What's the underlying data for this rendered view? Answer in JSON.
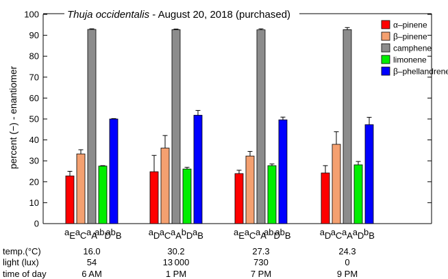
{
  "chart_data": {
    "type": "bar",
    "title_species": "Thuja occidentalis",
    "title_rest": " - August 20, 2018 (purchased)",
    "ylabel": "percent (−) - enantiomer",
    "ylim": [
      0,
      100
    ],
    "yticks": [
      0,
      10,
      20,
      30,
      40,
      50,
      60,
      70,
      80,
      90,
      100
    ],
    "grid": false,
    "legend_position": "top-right",
    "series": [
      {
        "name": "α–pinene",
        "color": "#ff0000",
        "values": [
          22.8,
          24.8,
          23.9,
          24.2
        ],
        "errors": [
          2.2,
          7.8,
          1.6,
          3.5
        ]
      },
      {
        "name": "β–pinene",
        "color": "#f4a070",
        "values": [
          33.3,
          36.1,
          32.3,
          37.9
        ],
        "errors": [
          2.0,
          6.0,
          2.2,
          6.0
        ]
      },
      {
        "name": "camphene",
        "color": "#8c8c8c",
        "values": [
          92.8,
          92.7,
          92.6,
          92.7
        ],
        "errors": [
          0.3,
          0.3,
          0.5,
          1.0
        ]
      },
      {
        "name": "limonene",
        "color": "#00ee00",
        "values": [
          27.5,
          26.1,
          27.7,
          28.1
        ],
        "errors": [
          0.2,
          0.8,
          0.8,
          1.6
        ]
      },
      {
        "name": "β–phellandrene",
        "color": "#0000ff",
        "values": [
          50.0,
          51.8,
          49.6,
          47.3
        ],
        "errors": [
          0.2,
          2.3,
          1.3,
          3.5
        ]
      }
    ],
    "groups": [
      {
        "letters": [
          {
            "main": "a",
            "sub": "E"
          },
          {
            "main": "a",
            "sub": "C"
          },
          {
            "main": "a",
            "sub": "A"
          },
          {
            "main": "ab",
            "sub": "D"
          },
          {
            "main": "ab",
            "sub": "B"
          }
        ]
      },
      {
        "letters": [
          {
            "main": "a",
            "sub": "D"
          },
          {
            "main": "a",
            "sub": "C"
          },
          {
            "main": "a",
            "sub": "A"
          },
          {
            "main": "b",
            "sub": "D"
          },
          {
            "main": "a",
            "sub": "B"
          }
        ]
      },
      {
        "letters": [
          {
            "main": "a",
            "sub": "E"
          },
          {
            "main": "a",
            "sub": "C"
          },
          {
            "main": "a",
            "sub": "A"
          },
          {
            "main": "ab",
            "sub": "D"
          },
          {
            "main": "ab",
            "sub": "B"
          }
        ]
      },
      {
        "letters": [
          {
            "main": "a",
            "sub": "D"
          },
          {
            "main": "a",
            "sub": "C"
          },
          {
            "main": "a",
            "sub": "A"
          },
          {
            "main": "a",
            "sub": "D"
          },
          {
            "main": "b",
            "sub": "B"
          }
        ]
      }
    ],
    "conditions": [
      {
        "label": "temp.(°C)",
        "values": [
          "16.0",
          "30.2",
          "27.3",
          "24.3"
        ]
      },
      {
        "label": "light (lux)",
        "values": [
          "54",
          "13 000",
          "730",
          "0"
        ]
      },
      {
        "label": "time of day",
        "values": [
          "6 AM",
          "1 PM",
          "7 PM",
          "9 PM"
        ]
      }
    ]
  }
}
